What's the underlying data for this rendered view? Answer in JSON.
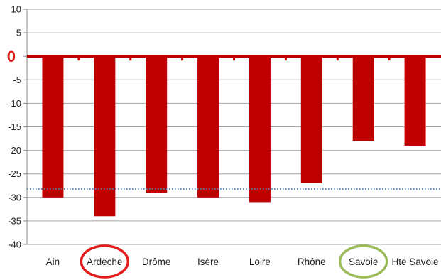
{
  "chart_data": {
    "type": "bar",
    "categories": [
      "Ain",
      "Ardèche",
      "Drôme",
      "Isère",
      "Loire",
      "Rhône",
      "Savoie",
      "Hte Savoie"
    ],
    "values": [
      -30,
      -34,
      -29,
      -30,
      -31,
      -27,
      -18,
      -19
    ],
    "ylim": [
      -40,
      10
    ],
    "yticks": [
      "10",
      "5",
      "0",
      "-5",
      "-10",
      "-15",
      "-20",
      "-25",
      "-30",
      "-35",
      "-40"
    ],
    "zero_label": "0",
    "reference_line": -28.2,
    "grid": true,
    "highlighted_categories": {
      "Ardèche": "#e31b1b",
      "Savoie": "#9bbb59"
    },
    "colors": {
      "bar": "#c00000",
      "zero_line": "#c00000",
      "zero_label": "#e31b1b",
      "reference_line": "#4f81bd",
      "grid": "#a6a6a6"
    }
  }
}
